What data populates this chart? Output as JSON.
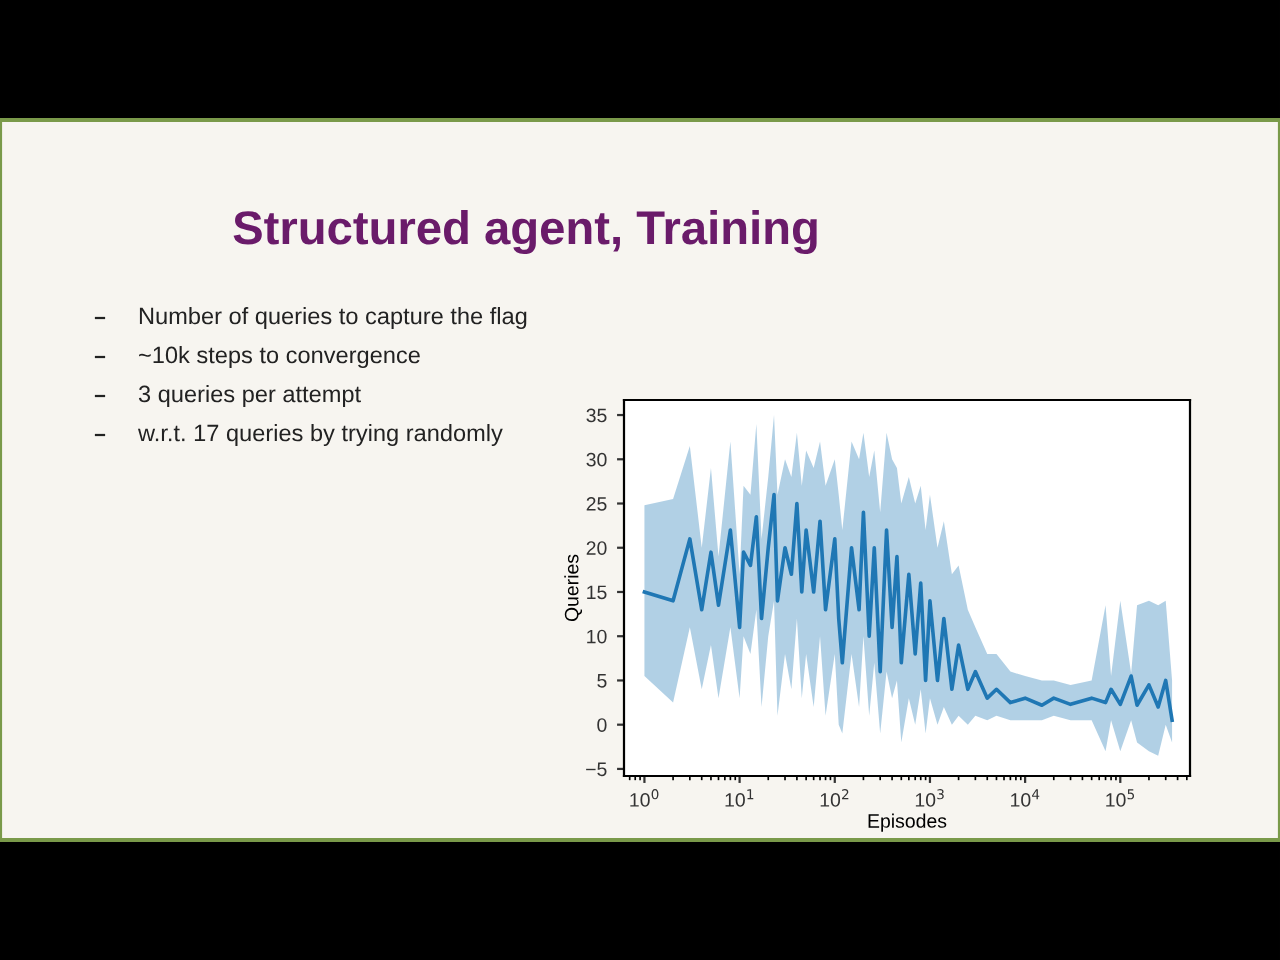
{
  "chart_data": {
    "type": "line",
    "title": "Structured agent, Training",
    "annotations": [
      "Number of queries to capture the flag",
      "~10k steps to convergence",
      "3 queries per attempt",
      "w.r.t. 17 queries by trying randomly"
    ],
    "xlabel": "Episodes",
    "ylabel": "Queries",
    "log": "x",
    "xlim": [
      0.61,
      540000
    ],
    "xticks": [
      {
        "value": 1,
        "label": "10$^{0}$"
      },
      {
        "value": 10,
        "label": "10$^{1}$"
      },
      {
        "value": 100,
        "label": "10$^{2}$"
      },
      {
        "value": 1000,
        "label": "10$^{3}$"
      },
      {
        "value": 10000,
        "label": "10$^{4}$"
      },
      {
        "value": 100000,
        "label": "10$^{5}$"
      }
    ],
    "ylim": [
      -5.8,
      36.7
    ],
    "yticks": [
      {
        "value": -5,
        "label": "−5"
      },
      0,
      5,
      10,
      15,
      20,
      25,
      30,
      35
    ],
    "grid": false,
    "legend": false,
    "series": [
      {
        "color": "#1f77b4",
        "x": [
          1,
          2,
          3,
          4,
          5,
          6,
          8,
          10,
          11,
          13,
          15,
          17,
          20,
          23,
          25,
          30,
          35,
          40,
          45,
          50,
          60,
          70,
          80,
          100,
          110,
          120,
          150,
          180,
          200,
          230,
          260,
          300,
          350,
          400,
          450,
          500,
          600,
          700,
          800,
          900,
          1000,
          1200,
          1400,
          1700,
          2000,
          2500,
          3000,
          4000,
          5000,
          7000,
          10000,
          15000,
          20000,
          30000,
          50000,
          70000,
          80000,
          100000,
          130000,
          150000,
          200000,
          250000,
          300000,
          350000
        ],
        "values": [
          15,
          14,
          21,
          13,
          19.5,
          13.5,
          22,
          11,
          19.5,
          18,
          23.5,
          12,
          20,
          26,
          14,
          20,
          17,
          25,
          15,
          22,
          15,
          23,
          13,
          21,
          12,
          7,
          20,
          13,
          24,
          10,
          20,
          6,
          22,
          11,
          19,
          7,
          17,
          8,
          16,
          5,
          14,
          5,
          12,
          4,
          9,
          4,
          6,
          3,
          4,
          2.5,
          3,
          2.2,
          3,
          2.3,
          3,
          2.5,
          4,
          2.3,
          5.5,
          2.2,
          4.5,
          2,
          5,
          0.5
        ],
        "lower": [
          5.5,
          2.5,
          11,
          4,
          9,
          3,
          11,
          3,
          10,
          8,
          13,
          2,
          10,
          14,
          1,
          8,
          4,
          12,
          3,
          8,
          2,
          10,
          1,
          8,
          0,
          -1,
          8,
          2,
          10,
          1,
          7,
          -1,
          6,
          3,
          5,
          -2,
          3,
          0,
          4,
          -1,
          3,
          0,
          2,
          0,
          1,
          0,
          1,
          0.5,
          1,
          0.5,
          0.5,
          0.5,
          1,
          0.5,
          0.5,
          -3,
          0.5,
          -3,
          0.5,
          -2,
          -3,
          -3.5,
          0,
          -2
        ],
        "upper": [
          24.8,
          25.5,
          31.5,
          20,
          29,
          19,
          32,
          17,
          27,
          26,
          34,
          21,
          28,
          35,
          26,
          30,
          28,
          33,
          27,
          31,
          29,
          32,
          27,
          30,
          26,
          22,
          32,
          30,
          33,
          28,
          31,
          24,
          33,
          30,
          29,
          25,
          28,
          25,
          27,
          22,
          26,
          20,
          23,
          17,
          18,
          13,
          11,
          8,
          8,
          6,
          5.5,
          5,
          5,
          4.5,
          5,
          13.5,
          5.5,
          14,
          5.8,
          13.5,
          14,
          13.5,
          14,
          5
        ]
      }
    ]
  }
}
